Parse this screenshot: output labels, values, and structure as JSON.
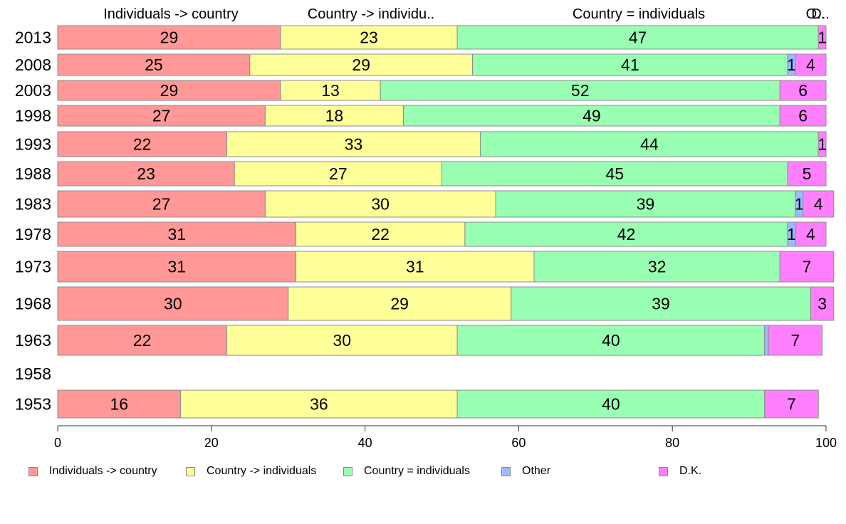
{
  "chart_data": {
    "type": "bar",
    "orientation": "horizontal",
    "stacked": true,
    "categories": [
      "2013",
      "2008",
      "2003",
      "1998",
      "1993",
      "1988",
      "1983",
      "1978",
      "1973",
      "1968",
      "1963",
      "1958",
      "1953"
    ],
    "series": [
      {
        "name": "Individuals -> country",
        "color": "#ff9896",
        "values": [
          29,
          25,
          29,
          27,
          22,
          23,
          27,
          31,
          31,
          30,
          22,
          null,
          16
        ]
      },
      {
        "name": "Country -> individuals",
        "color": "#ffff99",
        "values": [
          23,
          29,
          13,
          18,
          33,
          27,
          30,
          22,
          31,
          29,
          30,
          null,
          36
        ]
      },
      {
        "name": "Country = individuals",
        "color": "#98ffb3",
        "values": [
          47,
          41,
          52,
          49,
          44,
          45,
          39,
          42,
          32,
          39,
          40,
          null,
          40
        ]
      },
      {
        "name": "Other",
        "color": "#99bbff",
        "values": [
          0,
          1,
          0,
          0,
          0,
          0,
          1,
          1,
          0,
          0,
          0.5,
          null,
          0
        ]
      },
      {
        "name": "D.K.",
        "color": "#ff80ff",
        "values": [
          1,
          4,
          6,
          6,
          1,
          5,
          4,
          4,
          7,
          3,
          7,
          null,
          7
        ]
      }
    ],
    "top_labels": [
      "Individuals -> country",
      "Country -> individu..",
      "Country = individuals",
      "O..",
      "D.."
    ],
    "xlim": [
      0,
      100
    ],
    "x_ticks": [
      "0",
      "20",
      "40",
      "60",
      "80",
      "100"
    ],
    "legend_position": "bottom",
    "grid": false
  }
}
